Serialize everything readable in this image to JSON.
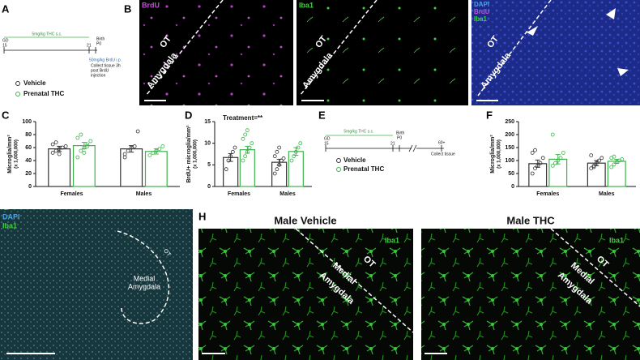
{
  "panel_labels": [
    "A",
    "B",
    "C",
    "D",
    "E",
    "F",
    "G",
    "H"
  ],
  "timeline_a": {
    "treatment": "5mg/kg THC s.c.",
    "start": [
      "GD",
      "15"
    ],
    "end": "21",
    "birth": [
      "Birth",
      "P0"
    ],
    "brdu": "50mg/kg BrdU i.p.",
    "collect": [
      "Collect tissue 3h",
      "post BrdU",
      "injection"
    ]
  },
  "timeline_e": {
    "treatment": "5mg/kg THC s.c.",
    "start": [
      "GD",
      "15"
    ],
    "end": "21",
    "birth": [
      "Birth",
      "P0"
    ],
    "adult": "60+",
    "collect": "Collect tissue"
  },
  "panel_b": {
    "stains": [
      "BrdU",
      "Iba1",
      "DAPI",
      "BrdU",
      "Iba1"
    ],
    "region_ot": "OT",
    "region_amygdala": "Amygdala"
  },
  "panel_g": {
    "stains": [
      "DAPI",
      "Iba1"
    ],
    "region": [
      "Medial",
      "Amygdala"
    ],
    "region_ot": "OT"
  },
  "panel_h": {
    "titles": [
      "Male Vehicle",
      "Male THC"
    ],
    "stain": "Iba1",
    "region_ot": "OT",
    "region": [
      "Medial",
      "Amygdala"
    ]
  },
  "chart_data": [
    {
      "type": "bar",
      "ylabel": "Microglia/mm²",
      "ylabel_units": "(x 1,000,000)",
      "categories": [
        "Females",
        "Males"
      ],
      "ylim": [
        0,
        100
      ],
      "yticks": [
        0,
        20,
        40,
        60,
        80,
        100
      ],
      "series": [
        {
          "name": "Vehicle",
          "color": "#333333",
          "values": [
            58,
            58
          ],
          "errors": [
            4,
            5
          ],
          "points": [
            [
              52,
              55,
              58,
              60,
              62,
              65,
              68,
              50
            ],
            [
              45,
              55,
              60,
              62,
              85,
              50
            ]
          ]
        },
        {
          "name": "Prenatal THC",
          "color": "#3cb44b",
          "values": [
            63,
            54
          ],
          "errors": [
            5,
            4
          ],
          "points": [
            [
              45,
              55,
              60,
              65,
              70,
              75,
              80,
              52,
              62
            ],
            [
              48,
              52,
              55,
              58,
              62
            ]
          ]
        }
      ]
    },
    {
      "type": "bar",
      "ylabel": "BrdU+ microglia/mm²",
      "ylabel_units": "(x 1,000,000)",
      "categories": [
        "Females",
        "Males"
      ],
      "annotation": "Treatment=**",
      "ylim": [
        0,
        15
      ],
      "yticks": [
        0,
        5,
        10,
        15
      ],
      "series": [
        {
          "name": "Vehicle",
          "color": "#333333",
          "values": [
            6.7,
            5.6
          ],
          "errors": [
            0.9,
            0.7
          ],
          "points": [
            [
              4,
              6,
              7,
              8,
              9
            ],
            [
              3,
              4,
              5,
              6,
              6.5,
              7,
              8,
              9
            ]
          ]
        },
        {
          "name": "Prenatal THC",
          "color": "#3cb44b",
          "values": [
            8.5,
            8.1
          ],
          "errors": [
            0.8,
            0.9
          ],
          "points": [
            [
              6,
              7,
              8,
              9,
              10,
              11,
              12,
              13
            ],
            [
              6,
              7,
              8,
              9,
              10
            ]
          ]
        }
      ]
    },
    {
      "type": "bar",
      "ylabel": "Microglia/mm²",
      "ylabel_units": "(x 1,000,000)",
      "categories": [
        "Females",
        "Males"
      ],
      "ylim": [
        0,
        250
      ],
      "yticks": [
        0,
        50,
        100,
        150,
        200,
        250
      ],
      "series": [
        {
          "name": "Vehicle",
          "color": "#333333",
          "values": [
            88,
            90
          ],
          "errors": [
            14,
            10
          ],
          "points": [
            [
              50,
              70,
              80,
              90,
              110,
              130,
              140
            ],
            [
              70,
              80,
              90,
              100,
              110,
              120,
              75
            ]
          ]
        },
        {
          "name": "Prenatal THC",
          "color": "#3cb44b",
          "values": [
            105,
            97
          ],
          "errors": [
            18,
            8
          ],
          "points": [
            [
              80,
              90,
              100,
              110,
              130,
              200
            ],
            [
              75,
              85,
              95,
              100,
              105,
              110,
              115
            ]
          ]
        }
      ]
    }
  ]
}
